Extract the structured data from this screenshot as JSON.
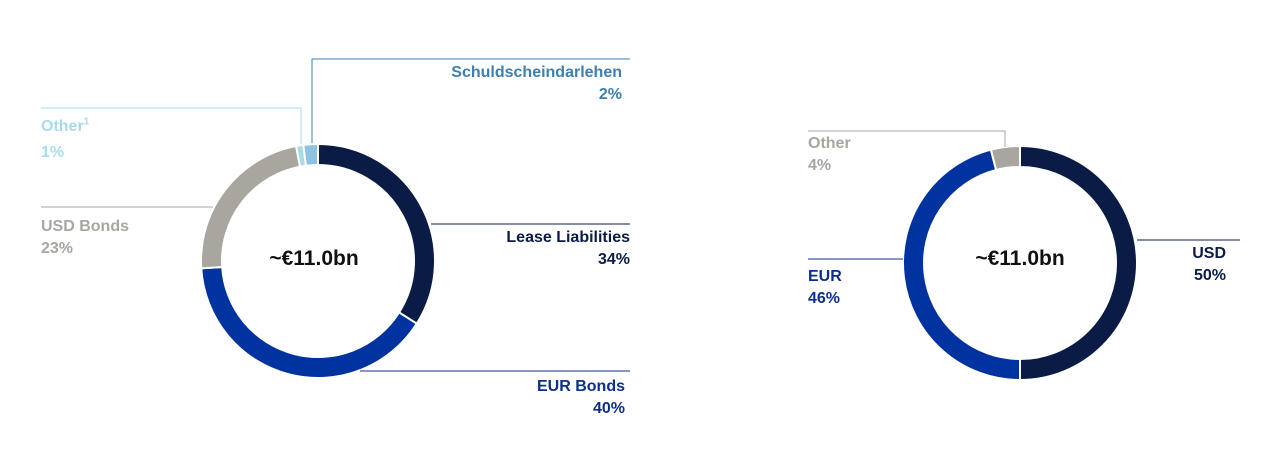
{
  "chart_data": [
    {
      "type": "pie",
      "donut": true,
      "center_label": "~€11.0bn",
      "slices": [
        {
          "name": "Lease Liabilities",
          "value": 34,
          "label": "34%",
          "color": "#0a1b45"
        },
        {
          "name": "EUR Bonds",
          "value": 40,
          "label": "40%",
          "color": "#0032a0"
        },
        {
          "name": "USD Bonds",
          "value": 23,
          "label": "23%",
          "color": "#a9a6a0"
        },
        {
          "name": "Other",
          "footnote": "1",
          "value": 1,
          "label": "1%",
          "color": "#a8dbea"
        },
        {
          "name": "Schuldscheindarlehen",
          "value": 2,
          "label": "2%",
          "color": "#8ec2e0"
        }
      ]
    },
    {
      "type": "pie",
      "donut": true,
      "center_label": "~€11.0bn",
      "slices": [
        {
          "name": "USD",
          "value": 50,
          "label": "50%",
          "color": "#0a1b45"
        },
        {
          "name": "EUR",
          "value": 46,
          "label": "46%",
          "color": "#0032a0"
        },
        {
          "name": "Other",
          "value": 4,
          "label": "4%",
          "color": "#a9a6a0"
        }
      ]
    }
  ],
  "label_colors": {
    "Lease Liabilities": "#0a1b45",
    "EUR Bonds": "#0d2f8c",
    "USD Bonds": "#a9a6a0",
    "Other1": "#a8dbea",
    "Schuldscheindarlehen": "#3e7fb0",
    "USD": "#0a1b45",
    "EUR": "#0d2f8c",
    "Other2": "#a9a6a0"
  }
}
